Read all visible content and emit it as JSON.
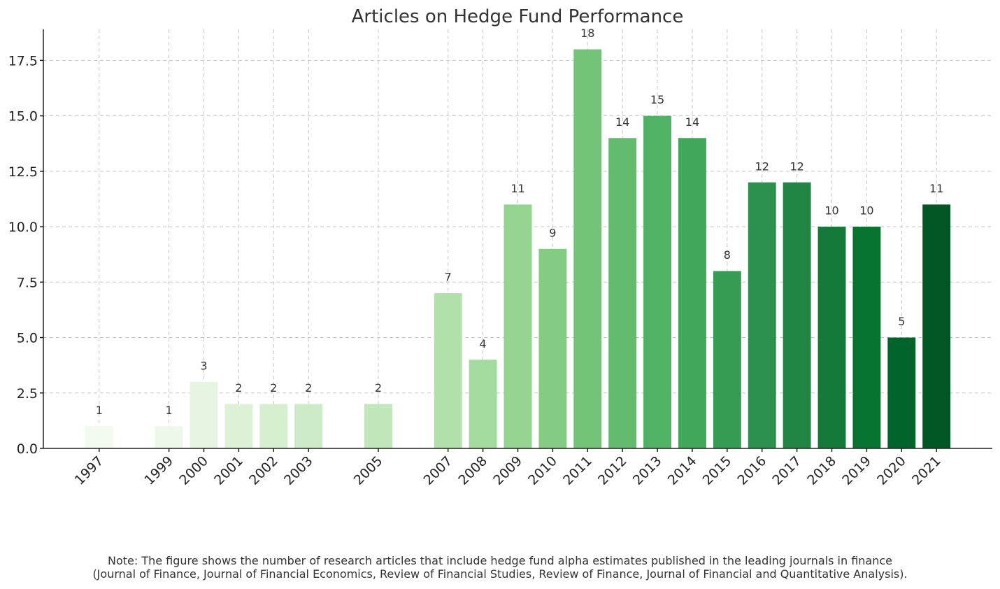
{
  "chart_data": {
    "type": "bar",
    "title": "Articles on Hedge Fund Performance",
    "xlabel": "",
    "ylabel": "",
    "ylim": [
      0,
      18.9
    ],
    "xlim": [
      1995.4,
      2022.6
    ],
    "yticks": [
      0.0,
      2.5,
      5.0,
      7.5,
      10.0,
      12.5,
      15.0,
      17.5
    ],
    "ytick_labels": [
      "0.0",
      "2.5",
      "5.0",
      "7.5",
      "10.0",
      "12.5",
      "15.0",
      "17.5"
    ],
    "grid": true,
    "categories": [
      "1997",
      "1999",
      "2000",
      "2001",
      "2002",
      "2003",
      "2005",
      "2007",
      "2008",
      "2009",
      "2010",
      "2011",
      "2012",
      "2013",
      "2014",
      "2015",
      "2016",
      "2017",
      "2018",
      "2019",
      "2020",
      "2021"
    ],
    "years": [
      1997,
      1999,
      2000,
      2001,
      2002,
      2003,
      2005,
      2007,
      2008,
      2009,
      2010,
      2011,
      2012,
      2013,
      2014,
      2015,
      2016,
      2017,
      2018,
      2019,
      2020,
      2021
    ],
    "values": [
      1,
      1,
      3,
      2,
      2,
      2,
      2,
      7,
      4,
      11,
      9,
      18,
      14,
      15,
      14,
      8,
      12,
      12,
      10,
      10,
      5,
      11
    ],
    "data_labels": [
      "1",
      "1",
      "3",
      "2",
      "2",
      "2",
      "2",
      "7",
      "4",
      "11",
      "9",
      "18",
      "14",
      "15",
      "14",
      "8",
      "12",
      "12",
      "10",
      "10",
      "5",
      "11"
    ],
    "colors": [
      "#f3faf0",
      "#eef8ea",
      "#e6f5e1",
      "#ddf1d7",
      "#d5efcf",
      "#ccebc6",
      "#c0e6b9",
      "#b1e0ab",
      "#a3da9d",
      "#94d390",
      "#84cc83",
      "#73c476",
      "#63bc6e",
      "#50b264",
      "#41a75b",
      "#349d53",
      "#2b914d",
      "#218544",
      "#147a3a",
      "#077331",
      "#00652b",
      "#005723"
    ]
  },
  "note": {
    "line1": "Note: The figure shows the number of research articles that include hedge fund alpha estimates published in the leading journals in finance",
    "line2": "(Journal of Finance, Journal of Financial Economics, Review of Financial Studies, Review of Finance, Journal of Financial and Quantitative Analysis)."
  }
}
